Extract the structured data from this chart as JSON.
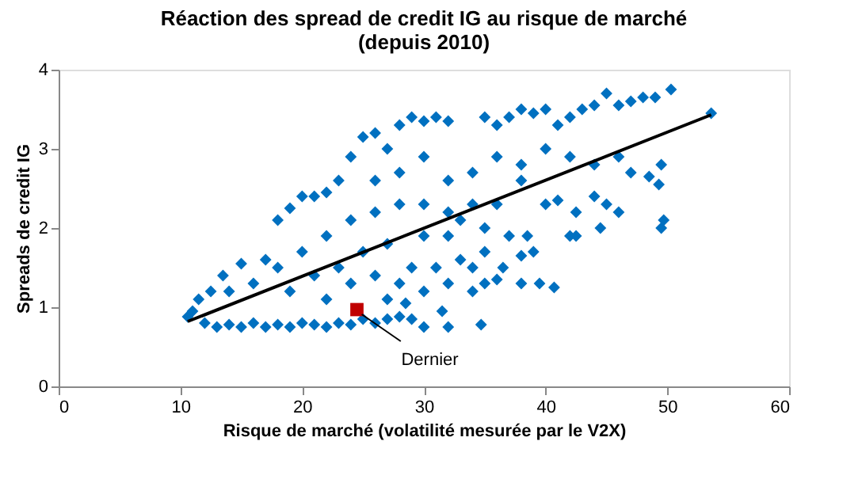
{
  "chart_data": {
    "type": "scatter",
    "title": [
      "Réaction des spread de credit IG au risque de marché",
      "(depuis 2010)"
    ],
    "xlabel": "Risque de marché (volatilité mesurée par le V2X)",
    "ylabel": "Spreads de credit IG",
    "xlim": [
      0,
      60
    ],
    "xticks": [
      0,
      10,
      20,
      30,
      40,
      50,
      60
    ],
    "ylim": [
      0,
      4
    ],
    "yticks": [
      0,
      1,
      2,
      3,
      4
    ],
    "grid": false,
    "annotations": [
      {
        "text": "Dernier",
        "x": 24.5,
        "y": 0.97
      }
    ],
    "series": [
      {
        "type": "scatter",
        "marker": "diamond",
        "color": "#0070c0",
        "x": [
          10.6,
          11,
          12,
          13,
          14,
          15,
          16,
          17,
          18,
          19,
          20,
          21,
          22,
          23,
          24,
          25,
          26,
          27,
          28,
          29,
          30,
          32,
          34.7,
          31.5,
          27,
          28.5,
          11.5,
          12.5,
          13.5,
          15,
          17,
          18,
          19,
          20,
          21,
          22,
          23,
          24,
          25,
          26,
          27,
          28,
          29,
          30,
          31,
          32,
          14,
          16,
          18,
          20,
          22,
          24,
          26,
          28,
          30,
          32,
          34,
          19,
          21,
          23,
          25,
          27,
          29,
          31,
          33,
          35,
          32,
          30,
          26,
          28,
          30,
          32,
          34,
          22,
          24,
          26,
          28,
          30,
          32,
          34,
          35,
          36,
          34,
          35,
          36,
          37,
          38,
          39,
          40,
          41,
          42,
          43,
          44,
          45,
          46,
          47,
          48,
          49,
          50.3,
          53.6,
          36,
          38,
          40,
          42,
          44,
          46,
          47,
          48.5,
          49.5,
          49.3,
          38,
          40,
          41,
          42.5,
          44,
          45,
          46,
          44.5,
          49.5,
          49.7,
          42,
          42.5,
          37,
          38.5,
          39,
          38,
          36,
          36.5,
          38,
          39.5,
          40.7,
          35,
          33
        ],
        "values": [
          0.88,
          0.95,
          0.8,
          0.75,
          0.78,
          0.75,
          0.8,
          0.75,
          0.78,
          0.75,
          0.8,
          0.78,
          0.75,
          0.8,
          0.78,
          0.85,
          0.8,
          0.85,
          0.88,
          0.85,
          0.75,
          0.75,
          0.78,
          0.95,
          1.1,
          1.05,
          1.1,
          1.2,
          1.4,
          1.55,
          1.6,
          2.1,
          2.25,
          2.4,
          2.4,
          2.45,
          2.6,
          2.9,
          3.15,
          3.2,
          3.0,
          3.3,
          3.4,
          3.35,
          3.4,
          3.35,
          1.2,
          1.3,
          1.5,
          1.7,
          1.9,
          2.1,
          2.2,
          2.3,
          2.3,
          2.2,
          2.3,
          1.2,
          1.4,
          1.5,
          1.7,
          1.8,
          1.5,
          1.5,
          1.6,
          1.7,
          1.9,
          1.9,
          2.6,
          2.7,
          2.9,
          2.6,
          2.7,
          1.1,
          1.3,
          1.4,
          1.3,
          1.2,
          1.3,
          1.5,
          1.3,
          1.35,
          1.2,
          3.4,
          3.3,
          3.4,
          3.5,
          3.45,
          3.5,
          3.3,
          3.4,
          3.5,
          3.55,
          3.7,
          3.55,
          3.6,
          3.65,
          3.65,
          3.75,
          3.45,
          2.9,
          2.8,
          3.0,
          2.9,
          2.8,
          2.9,
          2.7,
          2.65,
          2.8,
          2.55,
          2.6,
          2.3,
          2.35,
          2.2,
          2.4,
          2.3,
          2.2,
          2.0,
          2.0,
          2.1,
          1.9,
          1.9,
          1.9,
          1.9,
          1.7,
          1.65,
          2.3,
          1.5,
          1.3,
          1.3,
          1.25,
          2.0,
          2.1
        ]
      },
      {
        "type": "line",
        "color": "#000000",
        "x": [
          10.6,
          53.6
        ],
        "values": [
          0.82,
          3.43
        ]
      },
      {
        "type": "scatter",
        "marker": "square",
        "color": "#c00000",
        "x": [
          24.5
        ],
        "values": [
          0.97
        ]
      }
    ]
  }
}
